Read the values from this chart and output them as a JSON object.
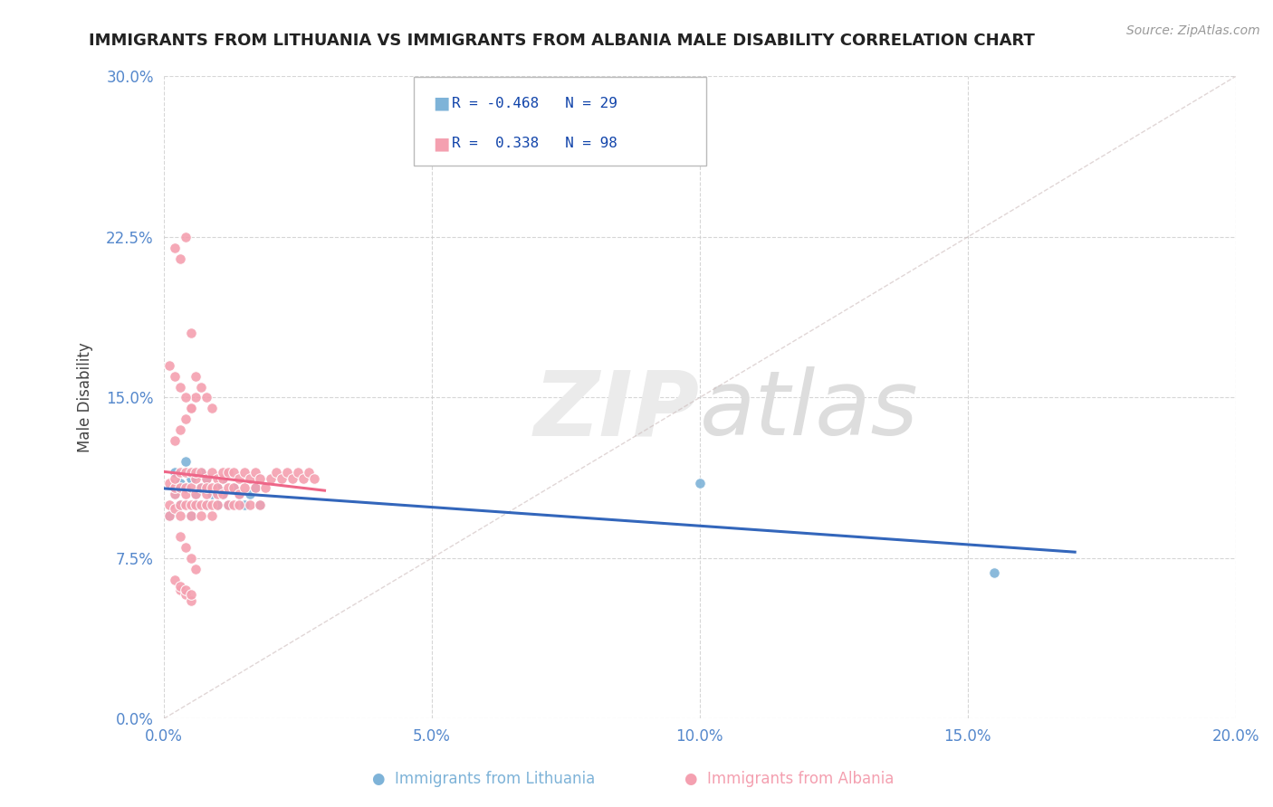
{
  "title": "IMMIGRANTS FROM LITHUANIA VS IMMIGRANTS FROM ALBANIA MALE DISABILITY CORRELATION CHART",
  "source": "Source: ZipAtlas.com",
  "ylabel": "Male Disability",
  "xmin": 0.0,
  "xmax": 0.2,
  "ymin": 0.0,
  "ymax": 0.3,
  "xticks": [
    0.0,
    0.05,
    0.1,
    0.15,
    0.2
  ],
  "yticks": [
    0.0,
    0.075,
    0.15,
    0.225,
    0.3
  ],
  "xtick_labels": [
    "0.0%",
    "5.0%",
    "10.0%",
    "15.0%",
    "20.0%"
  ],
  "ytick_labels": [
    "0.0%",
    "7.5%",
    "15.0%",
    "22.5%",
    "30.0%"
  ],
  "lithuania_color": "#7EB3D8",
  "albania_color": "#F4A0B0",
  "lithuania_R": -0.468,
  "lithuania_N": 29,
  "albania_R": 0.338,
  "albania_N": 98,
  "background_color": "#FFFFFF",
  "grid_color": "#CCCCCC",
  "trend_line_blue": "#3366BB",
  "trend_line_pink": "#EE6688",
  "ref_line_color": "#CCBBBB",
  "lithuania_x": [
    0.001,
    0.002,
    0.002,
    0.003,
    0.003,
    0.004,
    0.004,
    0.005,
    0.005,
    0.006,
    0.006,
    0.007,
    0.007,
    0.008,
    0.008,
    0.009,
    0.01,
    0.01,
    0.011,
    0.011,
    0.012,
    0.013,
    0.014,
    0.015,
    0.016,
    0.017,
    0.018,
    0.1,
    0.155
  ],
  "lithuania_y": [
    0.095,
    0.115,
    0.105,
    0.1,
    0.11,
    0.108,
    0.12,
    0.095,
    0.112,
    0.105,
    0.1,
    0.115,
    0.108,
    0.1,
    0.112,
    0.105,
    0.1,
    0.108,
    0.112,
    0.105,
    0.1,
    0.108,
    0.105,
    0.1,
    0.105,
    0.108,
    0.1,
    0.11,
    0.068
  ],
  "albania_x": [
    0.001,
    0.001,
    0.001,
    0.002,
    0.002,
    0.002,
    0.002,
    0.003,
    0.003,
    0.003,
    0.003,
    0.004,
    0.004,
    0.004,
    0.004,
    0.005,
    0.005,
    0.005,
    0.005,
    0.006,
    0.006,
    0.006,
    0.006,
    0.007,
    0.007,
    0.007,
    0.007,
    0.008,
    0.008,
    0.008,
    0.008,
    0.009,
    0.009,
    0.009,
    0.009,
    0.01,
    0.01,
    0.01,
    0.01,
    0.011,
    0.011,
    0.011,
    0.012,
    0.012,
    0.012,
    0.013,
    0.013,
    0.013,
    0.014,
    0.014,
    0.014,
    0.015,
    0.015,
    0.016,
    0.016,
    0.017,
    0.017,
    0.018,
    0.018,
    0.019,
    0.02,
    0.021,
    0.022,
    0.023,
    0.024,
    0.025,
    0.026,
    0.027,
    0.028,
    0.002,
    0.003,
    0.004,
    0.005,
    0.006,
    0.007,
    0.008,
    0.009,
    0.002,
    0.003,
    0.004,
    0.005,
    0.006,
    0.001,
    0.002,
    0.003,
    0.004,
    0.005,
    0.003,
    0.004,
    0.005,
    0.006,
    0.002,
    0.003,
    0.004,
    0.005,
    0.003,
    0.004,
    0.005
  ],
  "albania_y": [
    0.1,
    0.11,
    0.095,
    0.105,
    0.108,
    0.112,
    0.098,
    0.1,
    0.108,
    0.115,
    0.095,
    0.1,
    0.108,
    0.115,
    0.105,
    0.1,
    0.108,
    0.115,
    0.095,
    0.105,
    0.1,
    0.112,
    0.115,
    0.1,
    0.108,
    0.115,
    0.095,
    0.105,
    0.112,
    0.1,
    0.108,
    0.1,
    0.108,
    0.115,
    0.095,
    0.105,
    0.112,
    0.1,
    0.108,
    0.105,
    0.112,
    0.115,
    0.1,
    0.108,
    0.115,
    0.1,
    0.108,
    0.115,
    0.105,
    0.112,
    0.1,
    0.108,
    0.115,
    0.1,
    0.112,
    0.108,
    0.115,
    0.1,
    0.112,
    0.108,
    0.112,
    0.115,
    0.112,
    0.115,
    0.112,
    0.115,
    0.112,
    0.115,
    0.112,
    0.22,
    0.215,
    0.225,
    0.18,
    0.16,
    0.155,
    0.15,
    0.145,
    0.13,
    0.135,
    0.14,
    0.145,
    0.15,
    0.165,
    0.16,
    0.155,
    0.15,
    0.145,
    0.085,
    0.08,
    0.075,
    0.07,
    0.065,
    0.06,
    0.058,
    0.055,
    0.062,
    0.06,
    0.058
  ]
}
